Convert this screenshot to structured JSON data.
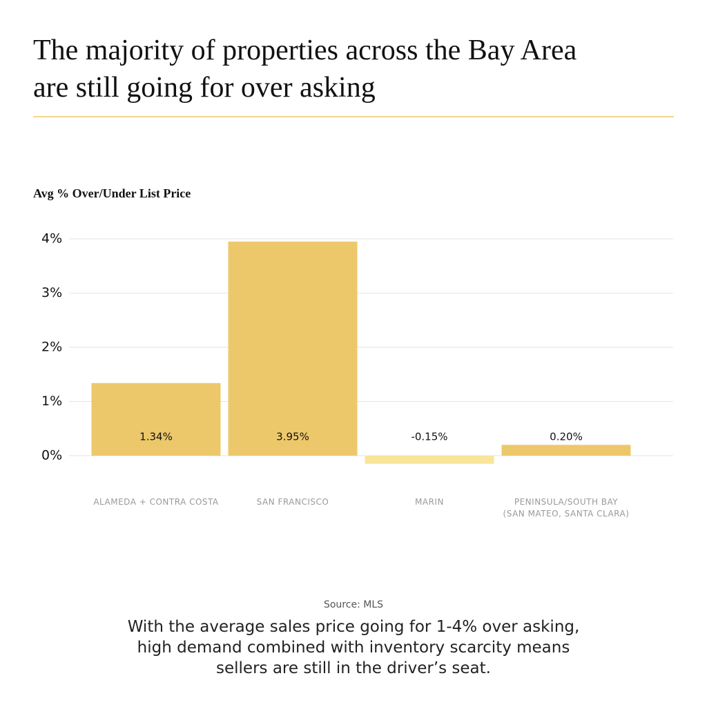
{
  "chart_data": {
    "type": "bar",
    "title": "The majority of properties across the Bay Area\nare still going for over asking",
    "y_label": "Avg % Over/Under List Price",
    "categories": [
      "ALAMEDA + CONTRA COSTA",
      "SAN FRANCISCO",
      "MARIN",
      "PENINSULA/SOUTH BAY\n(SAN MATEO, SANTA CLARA)"
    ],
    "values": [
      1.34,
      3.95,
      -0.15,
      0.2
    ],
    "value_labels": [
      "1.34%",
      "3.95%",
      "-0.15%",
      "0.20%"
    ],
    "colors": [
      "#edc86b",
      "#edc86b",
      "#f9e59a",
      "#edc86b"
    ],
    "ylim": [
      0,
      4
    ],
    "yticks": [
      {
        "value": 0,
        "label": "0%"
      },
      {
        "value": 1,
        "label": "1%"
      },
      {
        "value": 2,
        "label": "2%"
      },
      {
        "value": 3,
        "label": "3%"
      },
      {
        "value": 4,
        "label": "4%"
      }
    ],
    "grid": true,
    "source": "Source: MLS",
    "caption": "With the average sales price going for 1-4% over asking,\nhigh demand combined with inventory scarcity means\nsellers are still in the driver’s seat."
  }
}
